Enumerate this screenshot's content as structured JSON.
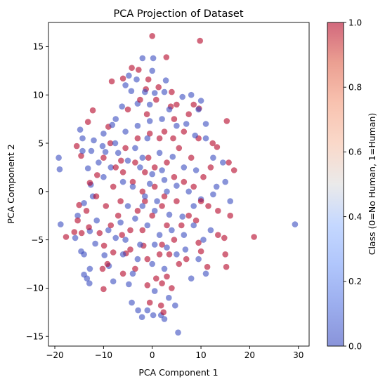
{
  "chart_data": {
    "type": "scatter",
    "title": "PCA Projection of Dataset",
    "xlabel": "PCA Component 1",
    "ylabel": "PCA Component 2",
    "xlim": [
      -21.3,
      32.2
    ],
    "ylim": [
      -16.0,
      17.5
    ],
    "xticks": [
      -20,
      -10,
      0,
      10,
      20,
      30
    ],
    "yticks": [
      -15,
      -10,
      -5,
      0,
      5,
      10,
      15
    ],
    "colorbar": {
      "label": "Class (0=No Human, 1=Human)",
      "range": [
        0.0,
        1.0
      ],
      "ticks": [
        "0.0",
        "0.2",
        "0.4",
        "0.6",
        "0.8",
        "1.0"
      ],
      "colormap": "coolwarm",
      "alpha": 0.6
    },
    "grid": false,
    "series": [
      {
        "class": 0,
        "color": "#3b4cc0",
        "points": [
          [
            -19.2,
            3.5
          ],
          [
            -19.0,
            2.3
          ],
          [
            -18.8,
            -3.4
          ],
          [
            29.3,
            -3.4
          ],
          [
            5.3,
            -14.6
          ],
          [
            -2.0,
            13.8
          ],
          [
            0.2,
            13.8
          ],
          [
            0.0,
            12.5
          ],
          [
            -4.8,
            12.0
          ],
          [
            -5.5,
            11.0
          ],
          [
            -4.3,
            10.4
          ],
          [
            -3.2,
            11.6
          ],
          [
            -1.5,
            10.3
          ],
          [
            0.5,
            10.2
          ],
          [
            2.5,
            10.3
          ],
          [
            2.8,
            11.5
          ],
          [
            6.2,
            9.8
          ],
          [
            8.0,
            10.0
          ],
          [
            10.0,
            9.4
          ],
          [
            -0.5,
            9.0
          ],
          [
            -3.0,
            9.1
          ],
          [
            -6.2,
            8.8
          ],
          [
            -14.8,
            6.4
          ],
          [
            -14.3,
            5.5
          ],
          [
            -12.0,
            5.3
          ],
          [
            -8.2,
            6.9
          ],
          [
            -7.6,
            5.0
          ],
          [
            -10.2,
            4.7
          ],
          [
            -14.3,
            4.2
          ],
          [
            -12.5,
            4.2
          ],
          [
            -9.6,
            4.1
          ],
          [
            -11.0,
            3.0
          ],
          [
            -13.2,
            2.4
          ],
          [
            -10.0,
            1.5
          ],
          [
            -12.6,
            0.7
          ],
          [
            -12.2,
            -0.5
          ],
          [
            -14.0,
            -1.2
          ],
          [
            -15.3,
            -2.5
          ],
          [
            -11.4,
            -3.0
          ],
          [
            -12.8,
            -4.1
          ],
          [
            -15.8,
            -4.8
          ],
          [
            -11.7,
            -5.4
          ],
          [
            -14.6,
            -6.2
          ],
          [
            -14.0,
            -6.5
          ],
          [
            -9.8,
            -6.6
          ],
          [
            -8.9,
            -7.7
          ],
          [
            -12.8,
            -8.0
          ],
          [
            -14.0,
            -8.6
          ],
          [
            -13.4,
            -9.0
          ],
          [
            -8.0,
            -9.3
          ],
          [
            -12.9,
            -9.5
          ],
          [
            -4.8,
            -9.6
          ],
          [
            -4.2,
            -11.5
          ],
          [
            -2.9,
            -12.3
          ],
          [
            -1.0,
            -12.3
          ],
          [
            -2.1,
            -13.0
          ],
          [
            0.2,
            -12.8
          ],
          [
            1.8,
            -12.8
          ],
          [
            2.5,
            -13.2
          ],
          [
            4.7,
            -11.8
          ],
          [
            3.4,
            -11.0
          ],
          [
            0.5,
            -10.3
          ],
          [
            8.0,
            -9.0
          ],
          [
            11.0,
            -8.5
          ],
          [
            9.5,
            -7.0
          ],
          [
            6.8,
            -6.0
          ],
          [
            3.0,
            -5.8
          ],
          [
            -2.5,
            -5.5
          ],
          [
            -5.5,
            -5.0
          ],
          [
            -7.5,
            -4.8
          ],
          [
            -9.0,
            -4.0
          ],
          [
            -6.5,
            -3.2
          ],
          [
            -3.5,
            -2.8
          ],
          [
            0.5,
            -2.0
          ],
          [
            3.5,
            -2.4
          ],
          [
            6.2,
            -2.6
          ],
          [
            8.5,
            -1.5
          ],
          [
            10.0,
            -0.8
          ],
          [
            12.5,
            -0.3
          ],
          [
            13.2,
            0.5
          ],
          [
            15.0,
            1.0
          ],
          [
            16.0,
            -1.0
          ],
          [
            14.5,
            3.0
          ],
          [
            12.5,
            3.5
          ],
          [
            11.0,
            5.5
          ],
          [
            8.8,
            5.8
          ],
          [
            7.0,
            7.0
          ],
          [
            5.0,
            6.8
          ],
          [
            2.0,
            7.5
          ],
          [
            -0.5,
            7.3
          ],
          [
            -3.0,
            6.8
          ],
          [
            -5.5,
            6.2
          ],
          [
            -7.0,
            4.0
          ],
          [
            -5.0,
            3.2
          ],
          [
            -2.5,
            2.5
          ],
          [
            0.0,
            1.8
          ],
          [
            2.5,
            1.2
          ],
          [
            5.0,
            0.6
          ],
          [
            7.5,
            0.0
          ],
          [
            -4.0,
            0.5
          ],
          [
            -6.0,
            1.0
          ],
          [
            -8.5,
            2.5
          ],
          [
            -3.5,
            4.5
          ],
          [
            1.5,
            4.0
          ],
          [
            4.2,
            3.6
          ],
          [
            6.5,
            2.5
          ],
          [
            9.0,
            2.2
          ],
          [
            -1.5,
            -0.5
          ],
          [
            1.0,
            -1.0
          ],
          [
            3.0,
            0.0
          ],
          [
            -0.5,
            0.8
          ],
          [
            2.0,
            2.2
          ],
          [
            -2.0,
            -1.5
          ],
          [
            4.0,
            -4.0
          ],
          [
            1.5,
            -4.5
          ],
          [
            -1.0,
            -3.5
          ],
          [
            -3.0,
            -7.0
          ],
          [
            0.0,
            -7.5
          ],
          [
            2.5,
            -8.0
          ],
          [
            5.0,
            -6.5
          ],
          [
            -6.0,
            -6.5
          ],
          [
            -4.0,
            -8.5
          ],
          [
            6.5,
            -4.5
          ],
          [
            8.5,
            -3.5
          ],
          [
            10.5,
            -5.0
          ],
          [
            12.0,
            -4.0
          ],
          [
            -7.5,
            7.5
          ],
          [
            -10.0,
            6.0
          ],
          [
            -1.0,
            5.5
          ],
          [
            3.5,
            8.5
          ],
          [
            9.5,
            8.5
          ],
          [
            11.0,
            7.0
          ],
          [
            -2.0,
            3.5
          ],
          [
            0.5,
            -5.5
          ],
          [
            -5.0,
            -1.5
          ]
        ]
      },
      {
        "class": 1,
        "color": "#b40426",
        "points": [
          [
            0.0,
            16.1
          ],
          [
            9.8,
            15.6
          ],
          [
            2.9,
            13.9
          ],
          [
            -2.8,
            12.6
          ],
          [
            -4.2,
            12.8
          ],
          [
            -8.3,
            11.4
          ],
          [
            -6.0,
            11.7
          ],
          [
            -0.8,
            11.6
          ],
          [
            -1.3,
            10.6
          ],
          [
            1.3,
            10.8
          ],
          [
            4.0,
            10.3
          ],
          [
            -12.2,
            8.4
          ],
          [
            -1.1,
            8.0
          ],
          [
            3.8,
            8.8
          ],
          [
            5.0,
            9.0
          ],
          [
            8.5,
            9.0
          ],
          [
            9.6,
            8.6
          ],
          [
            15.3,
            7.3
          ],
          [
            -13.2,
            7.2
          ],
          [
            -9.0,
            6.7
          ],
          [
            -14.6,
            3.7
          ],
          [
            -15.5,
            4.7
          ],
          [
            -8.6,
            5.0
          ],
          [
            -6.4,
            3.2
          ],
          [
            -0.8,
            3.5
          ],
          [
            2.5,
            6.2
          ],
          [
            4.3,
            5.5
          ],
          [
            6.5,
            6.2
          ],
          [
            9.5,
            5.5
          ],
          [
            12.4,
            5.0
          ],
          [
            13.3,
            4.6
          ],
          [
            15.7,
            3.0
          ],
          [
            16.8,
            2.2
          ],
          [
            -11.3,
            1.7
          ],
          [
            -12.8,
            0.9
          ],
          [
            -15.0,
            -1.4
          ],
          [
            -13.5,
            -2.0
          ],
          [
            -15.3,
            -3.0
          ],
          [
            -14.5,
            -4.3
          ],
          [
            -13.0,
            -3.7
          ],
          [
            -16.0,
            -4.2
          ],
          [
            -10.8,
            -4.3
          ],
          [
            -17.7,
            -4.7
          ],
          [
            -9.9,
            -5.6
          ],
          [
            -6.2,
            -4.5
          ],
          [
            -8.0,
            -6.3
          ],
          [
            -9.2,
            -7.5
          ],
          [
            -10.2,
            -8.0
          ],
          [
            -6.0,
            -8.5
          ],
          [
            -5.4,
            -6.4
          ],
          [
            -1.8,
            -5.6
          ],
          [
            2.0,
            -5.5
          ],
          [
            4.5,
            -5.0
          ],
          [
            9.5,
            -5.3
          ],
          [
            13.5,
            -4.5
          ],
          [
            16.0,
            -2.5
          ],
          [
            14.8,
            -4.8
          ],
          [
            15.0,
            -6.5
          ],
          [
            15.2,
            -7.8
          ],
          [
            20.9,
            -4.7
          ],
          [
            -10.0,
            -10.1
          ],
          [
            -1.0,
            -9.7
          ],
          [
            0.8,
            -9.0
          ],
          [
            2.0,
            -9.5
          ],
          [
            3.0,
            -8.8
          ],
          [
            1.8,
            -11.8
          ],
          [
            -0.5,
            -11.5
          ],
          [
            2.3,
            -12.5
          ],
          [
            5.5,
            -7.5
          ],
          [
            7.0,
            -7.0
          ],
          [
            10.0,
            -6.2
          ],
          [
            11.3,
            -7.8
          ],
          [
            5.0,
            -1.0
          ],
          [
            7.5,
            -2.5
          ],
          [
            3.0,
            -3.5
          ],
          [
            -1.5,
            -1.0
          ],
          [
            -3.0,
            -2.0
          ],
          [
            -4.5,
            -4.0
          ],
          [
            -7.0,
            -2.5
          ],
          [
            -9.5,
            -1.5
          ],
          [
            -11.5,
            -0.5
          ],
          [
            -8.0,
            0.5
          ],
          [
            -6.0,
            2.0
          ],
          [
            -4.0,
            1.0
          ],
          [
            -2.0,
            0.0
          ],
          [
            0.5,
            0.5
          ],
          [
            2.5,
            -0.5
          ],
          [
            4.5,
            1.5
          ],
          [
            6.5,
            1.0
          ],
          [
            8.5,
            0.5
          ],
          [
            10.5,
            1.5
          ],
          [
            12.0,
            2.5
          ],
          [
            11.5,
            -1.5
          ],
          [
            13.5,
            -2.0
          ],
          [
            8.0,
            3.5
          ],
          [
            5.5,
            4.5
          ],
          [
            3.0,
            3.0
          ],
          [
            0.5,
            2.5
          ],
          [
            -1.5,
            2.0
          ],
          [
            -3.5,
            3.0
          ],
          [
            -5.5,
            4.5
          ],
          [
            -7.5,
            2.5
          ],
          [
            -10.0,
            3.5
          ],
          [
            -3.0,
            5.5
          ],
          [
            -0.5,
            6.0
          ],
          [
            1.5,
            5.5
          ],
          [
            4.5,
            7.5
          ],
          [
            7.5,
            8.0
          ],
          [
            -5.0,
            8.5
          ],
          [
            -2.5,
            9.5
          ],
          [
            0.8,
            9.5
          ],
          [
            -1.0,
            -7.0
          ],
          [
            1.5,
            -6.5
          ],
          [
            -3.5,
            -8.0
          ],
          [
            4.0,
            -10.0
          ],
          [
            -2.0,
            -4.0
          ],
          [
            0.0,
            -2.5
          ],
          [
            2.0,
            -1.5
          ],
          [
            -6.5,
            -1.0
          ],
          [
            6.0,
            -3.5
          ],
          [
            9.0,
            -3.0
          ],
          [
            -8.5,
            -3.5
          ],
          [
            10.0,
            -1.0
          ],
          [
            -4.5,
            -6.0
          ],
          [
            3.5,
            -6.5
          ]
        ]
      }
    ]
  }
}
